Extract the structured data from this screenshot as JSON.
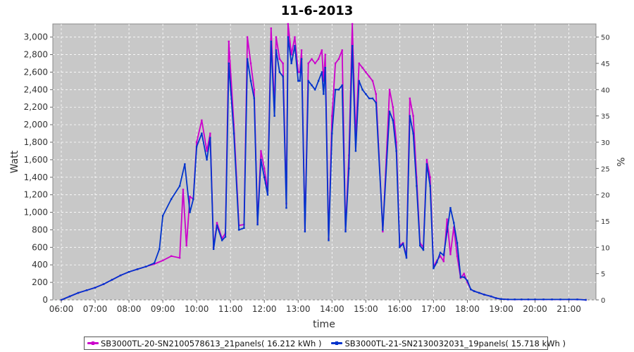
{
  "chart_data": {
    "type": "line",
    "title": "11-6-2013",
    "xlabel": "time",
    "ylabel": "Watt",
    "y2label": "%",
    "xlim": [
      5.75,
      21.8
    ],
    "ylim": [
      0,
      3150
    ],
    "y2lim": [
      0,
      52.5
    ],
    "x_tick_values": [
      6,
      7,
      8,
      9,
      10,
      11,
      12,
      13,
      14,
      15,
      16,
      17,
      18,
      19,
      20,
      21
    ],
    "x_ticks": [
      "06:00",
      "07:00",
      "08:00",
      "09:00",
      "10:00",
      "11:00",
      "12:00",
      "13:00",
      "14:00",
      "15:00",
      "16:00",
      "17:00",
      "18:00",
      "19:00",
      "20:00",
      "21:00"
    ],
    "y_tick_values": [
      0,
      200,
      400,
      600,
      800,
      1000,
      1200,
      1400,
      1600,
      1800,
      2000,
      2200,
      2400,
      2600,
      2800,
      3000
    ],
    "y_ticks": [
      "0",
      "200",
      "400",
      "600",
      "800",
      "1,000",
      "1,200",
      "1,400",
      "1,600",
      "1,800",
      "2,000",
      "2,200",
      "2,400",
      "2,600",
      "2,800",
      "3,000"
    ],
    "y2_tick_values": [
      0,
      5,
      10,
      15,
      20,
      25,
      30,
      35,
      40,
      45,
      50
    ],
    "y2_ticks": [
      "0",
      "5",
      "10",
      "15",
      "20",
      "25",
      "30",
      "35",
      "40",
      "45",
      "50"
    ],
    "grid": true,
    "legend_position": "bottom",
    "plot_background": "#c8c8c8",
    "series": [
      {
        "name": "SB3000TL-20-SN2100578613_21panels( 16.212 kWh )",
        "color": "#cc00cc",
        "x": [
          6.0,
          6.25,
          6.5,
          6.75,
          7.0,
          7.25,
          7.5,
          7.75,
          8.0,
          8.25,
          8.5,
          8.75,
          9.0,
          9.25,
          9.5,
          9.6,
          9.7,
          9.8,
          9.9,
          10.0,
          10.15,
          10.3,
          10.4,
          10.5,
          10.6,
          10.75,
          10.85,
          10.95,
          11.1,
          11.25,
          11.4,
          11.5,
          11.6,
          11.7,
          11.8,
          11.9,
          12.0,
          12.1,
          12.2,
          12.3,
          12.35,
          12.45,
          12.55,
          12.65,
          12.7,
          12.8,
          12.9,
          13.0,
          13.05,
          13.1,
          13.2,
          13.3,
          13.4,
          13.5,
          13.6,
          13.7,
          13.75,
          13.8,
          13.9,
          14.0,
          14.1,
          14.2,
          14.3,
          14.4,
          14.5,
          14.6,
          14.7,
          14.8,
          14.9,
          15.0,
          15.1,
          15.2,
          15.3,
          15.5,
          15.7,
          15.8,
          15.9,
          16.0,
          16.1,
          16.2,
          16.3,
          16.4,
          16.5,
          16.6,
          16.7,
          16.8,
          16.9,
          17.0,
          17.1,
          17.2,
          17.3,
          17.4,
          17.5,
          17.6,
          17.7,
          17.8,
          17.9,
          18.0,
          18.1,
          18.2,
          18.35,
          18.5,
          18.7,
          18.85,
          19.0,
          19.2,
          19.4,
          19.6,
          19.8,
          20.0,
          20.25,
          20.5,
          20.75,
          21.0,
          21.25,
          21.5
        ],
        "y": [
          0,
          40,
          80,
          110,
          140,
          180,
          230,
          280,
          320,
          350,
          380,
          410,
          450,
          500,
          480,
          1260,
          620,
          1180,
          1150,
          1800,
          2050,
          1700,
          1900,
          600,
          880,
          700,
          760,
          2950,
          2000,
          850,
          860,
          3000,
          2700,
          2400,
          880,
          1700,
          1500,
          1250,
          3100,
          2200,
          3000,
          2750,
          2700,
          1100,
          3150,
          2800,
          3000,
          2600,
          2600,
          2850,
          800,
          2700,
          2750,
          2700,
          2750,
          2850,
          2500,
          2800,
          700,
          2100,
          2700,
          2750,
          2850,
          800,
          1650,
          3150,
          1850,
          2700,
          2650,
          2600,
          2550,
          2500,
          2350,
          780,
          2400,
          2200,
          1800,
          620,
          650,
          500,
          2300,
          2100,
          1400,
          650,
          600,
          1600,
          1400,
          380,
          450,
          500,
          440,
          920,
          520,
          830,
          500,
          250,
          300,
          200,
          120,
          100,
          80,
          60,
          40,
          20,
          10,
          5,
          5,
          5,
          5,
          5,
          5,
          5,
          5,
          5,
          5,
          0
        ]
      },
      {
        "name": "SB3000TL-21-SN2130032031_19panels( 15.718 kWh )",
        "color": "#0033cc",
        "x": [
          6.0,
          6.25,
          6.5,
          6.75,
          7.0,
          7.25,
          7.5,
          7.75,
          8.0,
          8.25,
          8.5,
          8.75,
          8.9,
          9.0,
          9.25,
          9.5,
          9.65,
          9.8,
          9.9,
          10.0,
          10.15,
          10.3,
          10.4,
          10.5,
          10.6,
          10.75,
          10.85,
          10.95,
          11.1,
          11.25,
          11.4,
          11.5,
          11.6,
          11.7,
          11.8,
          11.9,
          12.0,
          12.1,
          12.2,
          12.3,
          12.35,
          12.45,
          12.55,
          12.65,
          12.7,
          12.8,
          12.9,
          13.0,
          13.05,
          13.1,
          13.2,
          13.3,
          13.4,
          13.5,
          13.6,
          13.7,
          13.75,
          13.8,
          13.9,
          14.0,
          14.1,
          14.2,
          14.3,
          14.4,
          14.5,
          14.6,
          14.7,
          14.8,
          14.9,
          15.0,
          15.1,
          15.2,
          15.3,
          15.5,
          15.7,
          15.8,
          15.9,
          16.0,
          16.1,
          16.2,
          16.3,
          16.4,
          16.5,
          16.6,
          16.7,
          16.8,
          16.9,
          17.0,
          17.1,
          17.2,
          17.3,
          17.4,
          17.5,
          17.6,
          17.7,
          17.8,
          17.9,
          18.0,
          18.1,
          18.2,
          18.35,
          18.5,
          18.7,
          18.85,
          19.0,
          19.2,
          19.4,
          19.6,
          19.8,
          20.0,
          20.25,
          20.5,
          20.75,
          21.0,
          21.25,
          21.5
        ],
        "y": [
          0,
          40,
          80,
          110,
          140,
          180,
          230,
          280,
          320,
          350,
          380,
          420,
          580,
          960,
          1150,
          1300,
          1550,
          1000,
          1150,
          1750,
          1900,
          1600,
          1850,
          580,
          850,
          680,
          720,
          2700,
          1900,
          800,
          820,
          2750,
          2500,
          2300,
          860,
          1600,
          1400,
          1200,
          2950,
          2100,
          2850,
          2600,
          2550,
          1050,
          3000,
          2700,
          2900,
          2500,
          2500,
          2750,
          780,
          2500,
          2450,
          2400,
          2500,
          2600,
          2350,
          2650,
          680,
          1900,
          2400,
          2400,
          2450,
          780,
          1500,
          2900,
          1700,
          2500,
          2400,
          2350,
          2300,
          2300,
          2250,
          800,
          2150,
          2050,
          1700,
          600,
          640,
          480,
          2100,
          1900,
          1300,
          620,
          570,
          1550,
          1300,
          360,
          430,
          540,
          510,
          780,
          1050,
          880,
          650,
          260,
          260,
          220,
          120,
          100,
          80,
          60,
          40,
          20,
          10,
          5,
          5,
          5,
          5,
          5,
          5,
          5,
          5,
          5,
          5,
          0
        ]
      }
    ]
  }
}
